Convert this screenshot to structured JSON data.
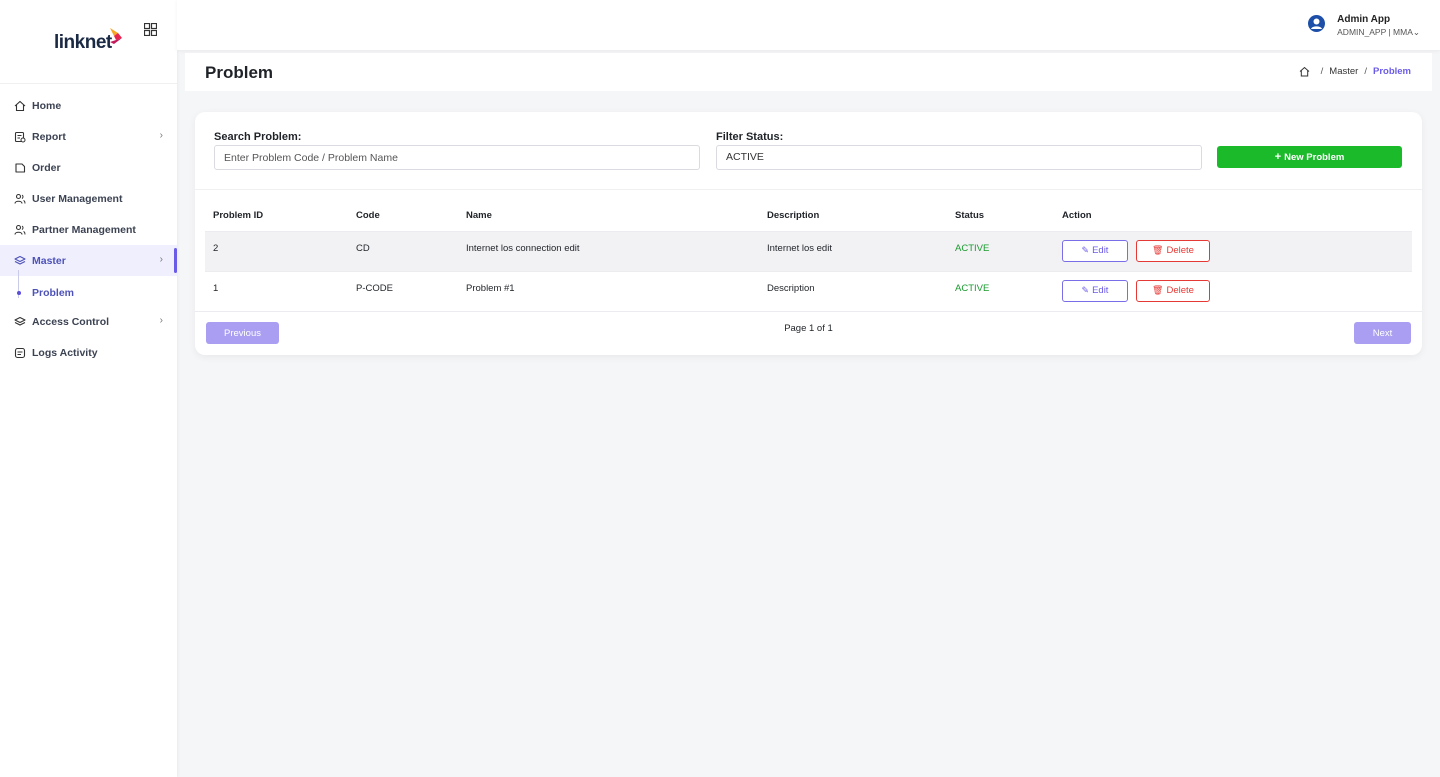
{
  "brand": {
    "logo_text": "linknet"
  },
  "sidebar": {
    "items": [
      {
        "label": "Home",
        "icon": "home-icon"
      },
      {
        "label": "Report",
        "icon": "report-icon"
      },
      {
        "label": "Order",
        "icon": "order-icon"
      },
      {
        "label": "User Management",
        "icon": "users-icon"
      },
      {
        "label": "Partner Management",
        "icon": "partner-icon"
      },
      {
        "label": "Master",
        "icon": "layers-icon"
      },
      {
        "label": "Access Control",
        "icon": "access-icon"
      },
      {
        "label": "Logs Activity",
        "icon": "logs-icon"
      }
    ],
    "sub_item": "Problem"
  },
  "topbar": {
    "user_name": "Admin App",
    "user_role": "ADMIN_APP | MMA"
  },
  "page": {
    "title": "Problem",
    "breadcrumb": {
      "sep": "/",
      "master": "Master",
      "current": "Problem"
    }
  },
  "filters": {
    "search_label": "Search Problem:",
    "search_placeholder": "Enter Problem Code / Problem Name",
    "status_label": "Filter Status:",
    "status_value": "ACTIVE",
    "new_button": "New Problem"
  },
  "table": {
    "headers": [
      "Problem ID",
      "Code",
      "Name",
      "Description",
      "Status",
      "Action"
    ],
    "rows": [
      {
        "id": "2",
        "code": "CD",
        "name": "Internet los connection edit",
        "description": "Internet los edit",
        "status": "ACTIVE"
      },
      {
        "id": "1",
        "code": "P-CODE",
        "name": "Problem #1",
        "description": "Description",
        "status": "ACTIVE"
      }
    ],
    "edit_label": "Edit",
    "delete_label": "Delete"
  },
  "pagination": {
    "prev": "Previous",
    "info": "Page 1 of 1",
    "next": "Next"
  },
  "colors": {
    "accent": "#6b5ce7",
    "success": "#1aba2a",
    "danger": "#e53935",
    "status_active": "#1a9a2e"
  }
}
